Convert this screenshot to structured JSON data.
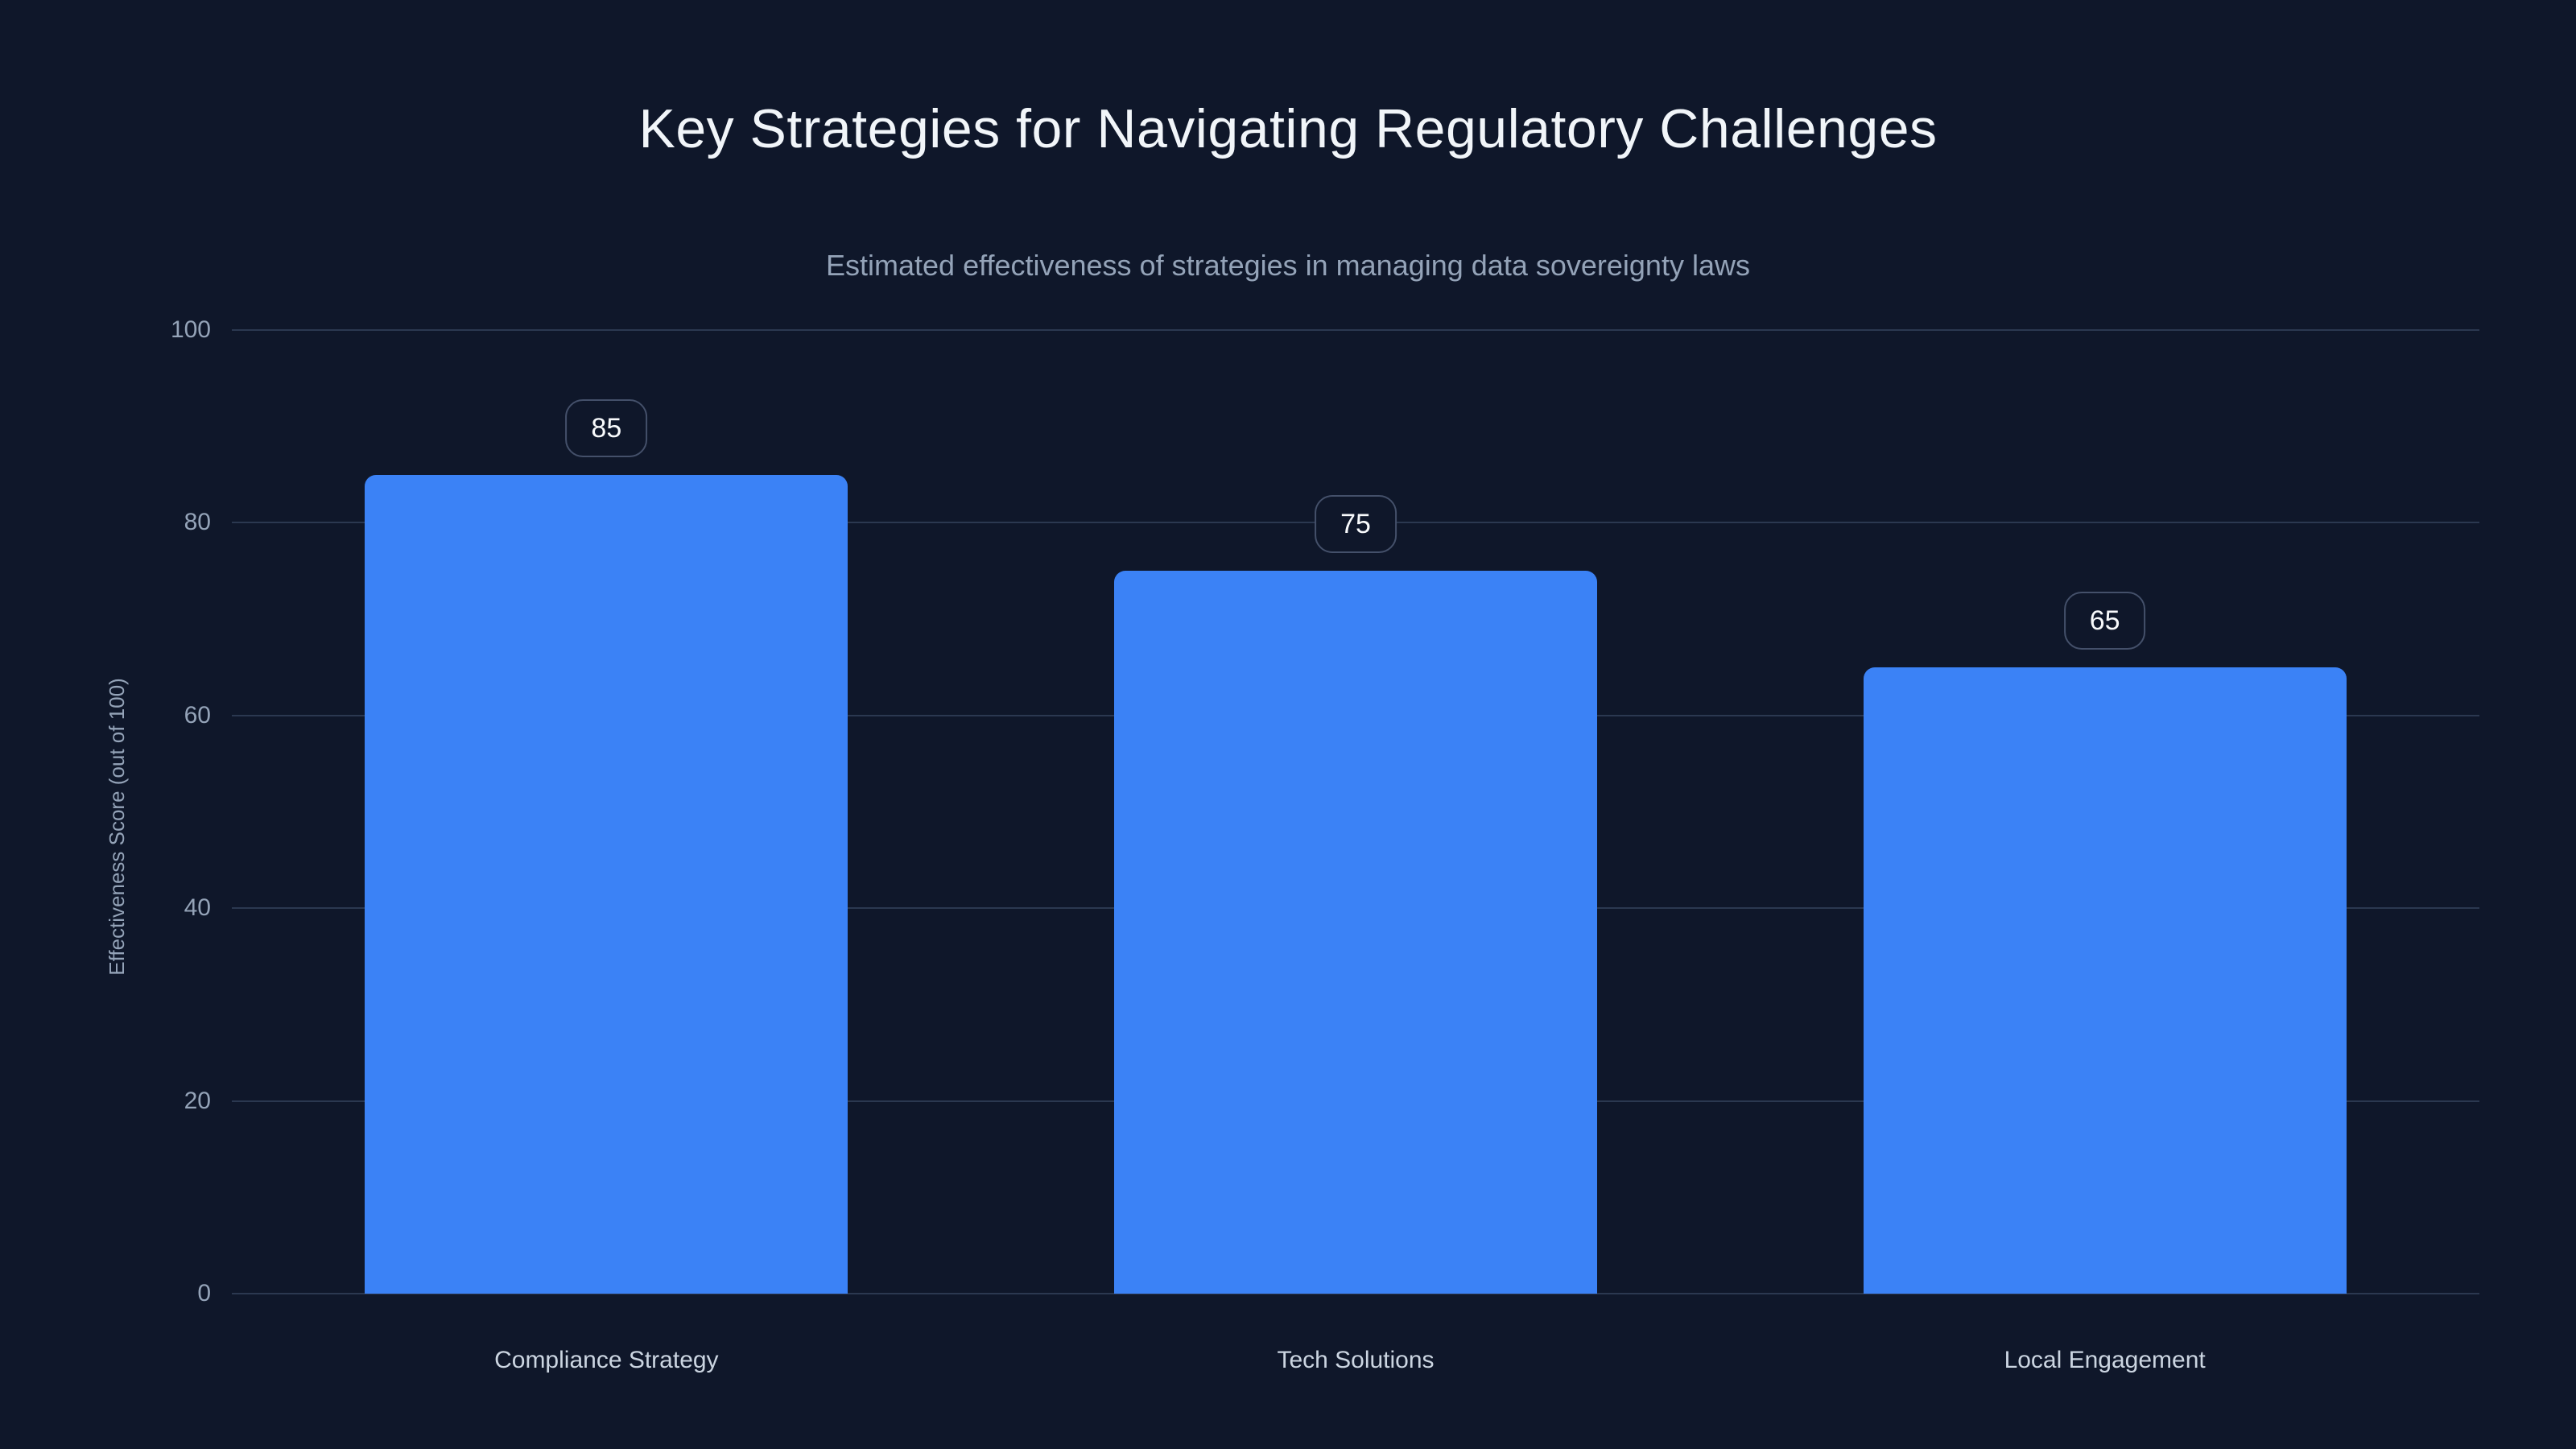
{
  "page": {
    "background": "#0f172a"
  },
  "chart_data": {
    "type": "bar",
    "title": "Key Strategies for Navigating Regulatory Challenges",
    "subtitle": "Estimated effectiveness of strategies in managing data sovereignty laws",
    "categories": [
      "Compliance Strategy",
      "Tech Solutions",
      "Local Engagement"
    ],
    "values": [
      85,
      75,
      65
    ],
    "value_labels": [
      "85",
      "75",
      "65"
    ],
    "xlabel": "",
    "ylabel": "Effectiveness Score (out of 100)",
    "ylim": [
      0,
      100
    ],
    "yticks": [
      0,
      20,
      40,
      60,
      80,
      100
    ],
    "grid": true,
    "legend": false,
    "colors": {
      "bar": "#3b82f6",
      "background": "#0f172a",
      "title": "#f1f5f9",
      "subtitle": "#94a3b8",
      "tick_label": "#94a3b8",
      "axis_label": "#94a3b8",
      "category_label": "#cbd5e1",
      "gridline": "#2b3850",
      "badge_border": "#44506a",
      "badge_background": "#0f172a",
      "badge_text": "#f8fafc"
    }
  }
}
